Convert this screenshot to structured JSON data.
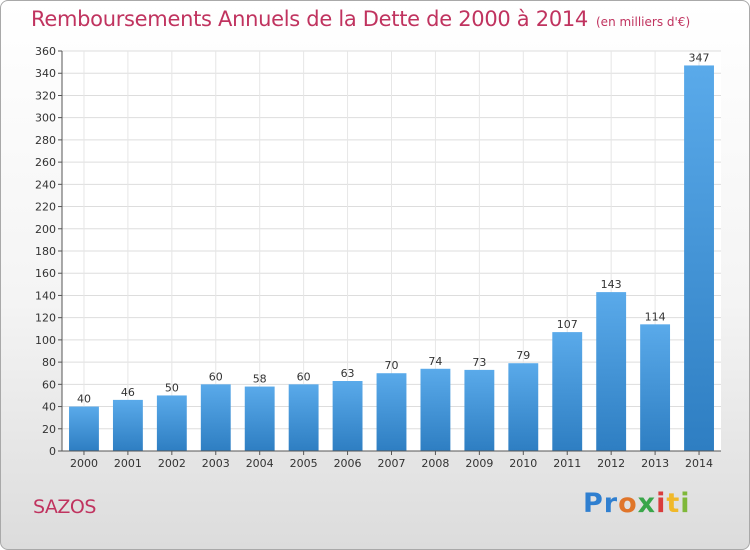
{
  "title": "Remboursements Annuels de la Dette de 2000 à 2014",
  "unit_label": "(en milliers d'€)",
  "commune": "SAZOS",
  "logo": {
    "text": "Proxiti",
    "letters": [
      "Pr",
      "o",
      "x",
      "i",
      "t",
      "i"
    ]
  },
  "colors": {
    "bar_light": "#5aaaea",
    "bar_dark": "#2e7ec2",
    "title": "#c0335f"
  },
  "chart_data": {
    "type": "bar",
    "title": "Remboursements Annuels de la Dette de 2000 à 2014",
    "categories": [
      "2000",
      "2001",
      "2002",
      "2003",
      "2004",
      "2005",
      "2006",
      "2007",
      "2008",
      "2009",
      "2010",
      "2011",
      "2012",
      "2013",
      "2014"
    ],
    "values": [
      40,
      46,
      50,
      60,
      58,
      60,
      63,
      70,
      74,
      73,
      79,
      107,
      143,
      114,
      347
    ],
    "ylim": [
      0,
      360
    ],
    "yticks": [
      0,
      20,
      40,
      60,
      80,
      100,
      120,
      140,
      160,
      180,
      200,
      220,
      240,
      260,
      280,
      300,
      320,
      340,
      360
    ],
    "grid": true,
    "legend": "none",
    "data_labels": true
  }
}
